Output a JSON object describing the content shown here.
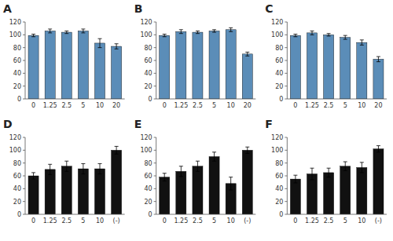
{
  "chart_data": [
    {
      "type": "bar",
      "title": "A",
      "categories": [
        "0",
        "1.25",
        "2.5",
        "5",
        "10",
        "20"
      ],
      "values": [
        99,
        106,
        104,
        106,
        87,
        82
      ],
      "errors": [
        2,
        3,
        2,
        3,
        7,
        4
      ],
      "color": "#5B8DB8",
      "ylim": [
        0,
        120
      ],
      "yticks": [
        0,
        20,
        40,
        60,
        80,
        100,
        120
      ]
    },
    {
      "type": "bar",
      "title": "B",
      "categories": [
        "0",
        "1.25",
        "2.5",
        "5",
        "10",
        "20"
      ],
      "values": [
        99,
        105,
        104,
        106,
        108,
        70
      ],
      "errors": [
        2,
        3,
        2,
        2,
        3,
        3
      ],
      "color": "#5B8DB8",
      "ylim": [
        0,
        120
      ],
      "yticks": [
        0,
        20,
        40,
        60,
        80,
        100,
        120
      ]
    },
    {
      "type": "bar",
      "title": "C",
      "categories": [
        "0",
        "1.25",
        "2.5",
        "5",
        "10",
        "20"
      ],
      "values": [
        99,
        103,
        100,
        96,
        88,
        62
      ],
      "errors": [
        2,
        3,
        2,
        3,
        4,
        4
      ],
      "color": "#5B8DB8",
      "ylim": [
        0,
        120
      ],
      "yticks": [
        0,
        20,
        40,
        60,
        80,
        100,
        120
      ]
    },
    {
      "type": "bar",
      "title": "D",
      "categories": [
        "0",
        "1.25",
        "2.5",
        "5",
        "10",
        "(-)"
      ],
      "values": [
        60,
        70,
        75,
        71,
        71,
        100
      ],
      "errors": [
        5,
        8,
        8,
        8,
        8,
        6
      ],
      "color": "#111111",
      "ylim": [
        0,
        120
      ],
      "yticks": [
        0,
        20,
        40,
        60,
        80,
        100,
        120
      ]
    },
    {
      "type": "bar",
      "title": "E",
      "categories": [
        "0",
        "1.25",
        "2.5",
        "5",
        "10",
        "(-)"
      ],
      "values": [
        58,
        67,
        75,
        90,
        48,
        100
      ],
      "errors": [
        6,
        8,
        8,
        7,
        10,
        5
      ],
      "color": "#111111",
      "ylim": [
        0,
        120
      ],
      "yticks": [
        0,
        20,
        40,
        60,
        80,
        100,
        120
      ]
    },
    {
      "type": "bar",
      "title": "F",
      "categories": [
        "0",
        "1.25",
        "2.5",
        "5",
        "10",
        "(-)"
      ],
      "values": [
        55,
        63,
        65,
        75,
        73,
        102
      ],
      "errors": [
        6,
        9,
        7,
        7,
        8,
        5
      ],
      "color": "#111111",
      "ylim": [
        0,
        120
      ],
      "yticks": [
        0,
        20,
        40,
        60,
        80,
        100,
        120
      ]
    }
  ]
}
